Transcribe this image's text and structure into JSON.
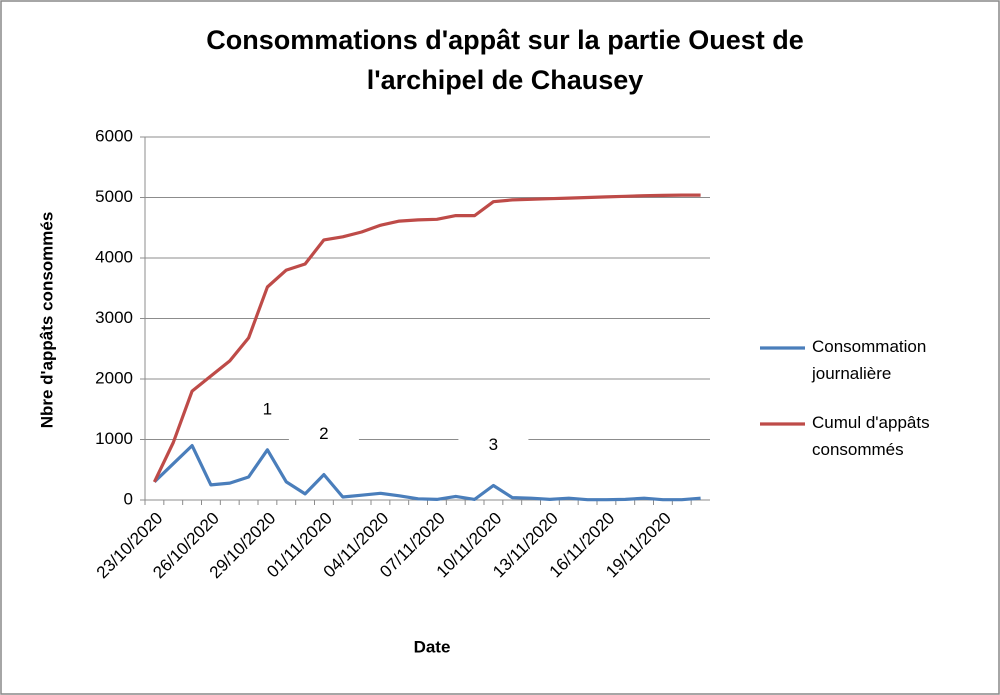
{
  "chart_data": {
    "type": "line",
    "title": [
      "Consommations  d'appât  sur  la partie Ouest de",
      "l'archipel de Chausey"
    ],
    "x_label": "Date",
    "y_label": "Nbre d'appâts consommés",
    "categories": [
      "23/10/2020",
      null,
      null,
      "26/10/2020",
      null,
      null,
      "29/10/2020",
      null,
      null,
      "01/11/2020",
      null,
      null,
      "04/11/2020",
      null,
      null,
      "07/11/2020",
      null,
      null,
      "10/11/2020",
      null,
      null,
      "13/11/2020",
      null,
      null,
      "16/11/2020",
      null,
      null,
      "19/11/2020",
      null,
      null
    ],
    "series": [
      {
        "name": "Consommation journalière",
        "color": "#4a7ebb",
        "values": [
          300,
          600,
          900,
          250,
          280,
          380,
          830,
          300,
          100,
          420,
          50,
          80,
          110,
          70,
          20,
          10,
          60,
          10,
          240,
          40,
          30,
          10,
          30,
          5,
          5,
          10,
          30,
          5,
          5,
          30
        ]
      },
      {
        "name": "Cumul d'appâts consommés",
        "color": "#be4b48",
        "values": [
          300,
          950,
          1800,
          2050,
          2300,
          2680,
          3520,
          3800,
          3900,
          4300,
          4350,
          4430,
          4540,
          4610,
          4630,
          4640,
          4700,
          4700,
          4930,
          4960,
          4970,
          4980,
          4990,
          5000,
          5010,
          5020,
          5030,
          5035,
          5040,
          5040
        ]
      }
    ],
    "annotations": [
      {
        "text": "1",
        "x": "29/10/2020"
      },
      {
        "text": "2",
        "x": "01/11/2020"
      },
      {
        "text": "3",
        "x": "10/11/2020"
      }
    ],
    "ylim": [
      0,
      6000
    ],
    "yticks": [
      0,
      1000,
      2000,
      3000,
      4000,
      5000,
      6000
    ],
    "grid": true,
    "legend": "right"
  }
}
